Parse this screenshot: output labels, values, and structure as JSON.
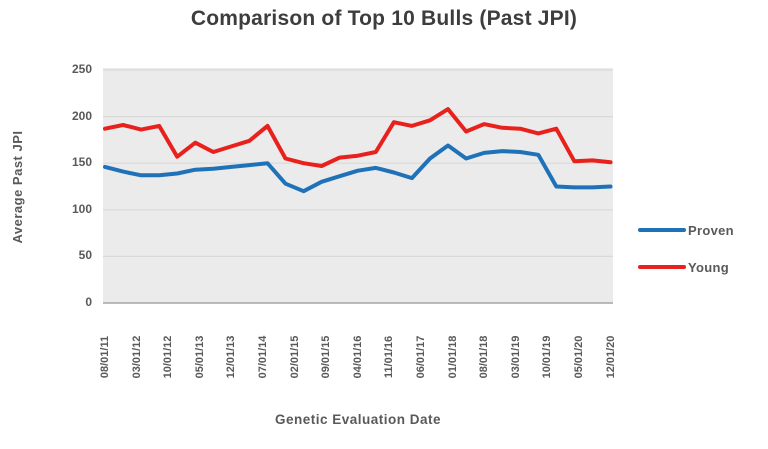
{
  "chart_data": {
    "type": "line",
    "title": "Comparison of Top 10 Bulls (Past JPI)",
    "xlabel": "Genetic Evaluation Date",
    "ylabel": "Average Past JPI",
    "ylim": [
      0,
      250
    ],
    "y_ticks": [
      0,
      50,
      100,
      150,
      200,
      250
    ],
    "x_tick_labels": [
      "08/01/11",
      "03/01/12",
      "10/01/12",
      "05/01/13",
      "12/01/13",
      "07/01/14",
      "02/01/15",
      "09/01/15",
      "04/01/16",
      "11/01/16",
      "06/01/17",
      "01/01/18",
      "08/01/18",
      "03/01/19",
      "10/01/19",
      "05/01/20",
      "12/01/20"
    ],
    "grid": true,
    "legend_position": "right",
    "plot_bg": "#ebebeb",
    "gridline_color": "#d9d9d9",
    "axis_line_color": "#a6a6a6",
    "series": [
      {
        "name": "Proven",
        "color": "#1F72B8",
        "values": [
          146,
          141,
          137,
          137,
          139,
          143,
          144,
          146,
          148,
          150,
          128,
          120,
          130,
          136,
          142,
          145,
          140,
          134,
          155,
          169,
          155,
          161,
          163,
          162,
          159,
          125,
          124,
          124,
          125
        ]
      },
      {
        "name": "Young",
        "color": "#E8211D",
        "values": [
          187,
          191,
          186,
          190,
          157,
          172,
          162,
          168,
          174,
          190,
          155,
          150,
          147,
          156,
          158,
          162,
          194,
          190,
          196,
          208,
          184,
          192,
          188,
          187,
          182,
          187,
          152,
          153,
          151
        ]
      }
    ]
  }
}
